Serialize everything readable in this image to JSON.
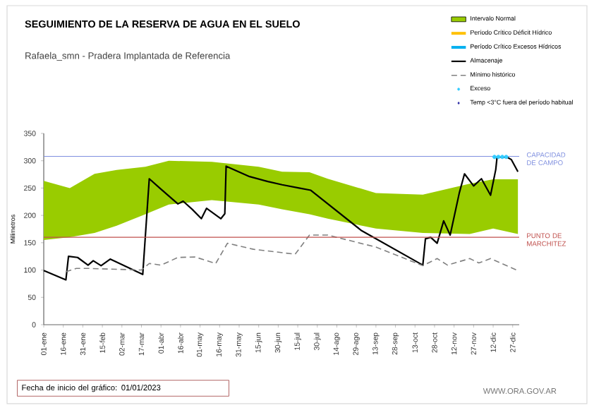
{
  "chart_data": {
    "type": "line",
    "title": "SEGUIMIENTO DE LA RESERVA DE AGUA EN EL SUELO",
    "subtitle": "Rafaela_smn - Pradera Implantada  de Referencia",
    "ylabel": "Milímetros",
    "xlim": [
      "2023-01-01",
      "2024-01-01"
    ],
    "ylim": [
      0,
      350
    ],
    "yticks": [
      0,
      50,
      100,
      150,
      200,
      250,
      300,
      350
    ],
    "xticks": [
      {
        "value": "2023-01-01",
        "label": "01-ene"
      },
      {
        "value": "2023-01-16",
        "label": "16-ene"
      },
      {
        "value": "2023-01-31",
        "label": "31-ene"
      },
      {
        "value": "2023-02-15",
        "label": "15-feb"
      },
      {
        "value": "2023-03-02",
        "label": "02-mar"
      },
      {
        "value": "2023-03-17",
        "label": "17-mar"
      },
      {
        "value": "2023-04-01",
        "label": "01-abr"
      },
      {
        "value": "2023-04-16",
        "label": "16-abr"
      },
      {
        "value": "2023-05-01",
        "label": "01-may"
      },
      {
        "value": "2023-05-16",
        "label": "16-may"
      },
      {
        "value": "2023-05-31",
        "label": "31-may"
      },
      {
        "value": "2023-06-15",
        "label": "15-jun"
      },
      {
        "value": "2023-06-30",
        "label": "30-jun"
      },
      {
        "value": "2023-07-15",
        "label": "15-jul"
      },
      {
        "value": "2023-07-30",
        "label": "30-jul"
      },
      {
        "value": "2023-08-14",
        "label": "14-ago"
      },
      {
        "value": "2023-08-29",
        "label": "29-ago"
      },
      {
        "value": "2023-09-13",
        "label": "13-sep"
      },
      {
        "value": "2023-09-28",
        "label": "28-sep"
      },
      {
        "value": "2023-10-13",
        "label": "13-oct"
      },
      {
        "value": "2023-10-28",
        "label": "28-oct"
      },
      {
        "value": "2023-11-12",
        "label": "12-nov"
      },
      {
        "value": "2023-11-27",
        "label": "27-nov"
      },
      {
        "value": "2023-12-12",
        "label": "12-dic"
      },
      {
        "value": "2023-12-27",
        "label": "27-dic"
      }
    ],
    "legend": "top right",
    "series": [
      {
        "name": "Intervalo Normal",
        "type": "area",
        "color": "#99cc00",
        "x": [
          "2023-01-01",
          "2023-01-21",
          "2023-02-09",
          "2023-02-26",
          "2023-03-20",
          "2023-04-07",
          "2023-05-10",
          "2023-06-15",
          "2023-07-03",
          "2023-07-24",
          "2023-08-07",
          "2023-09-13",
          "2023-10-19",
          "2023-11-24",
          "2023-12-12",
          "2023-12-31"
        ],
        "values": [
          null,
          null,
          null,
          null,
          null,
          null,
          null,
          null,
          null,
          null,
          null,
          null,
          null,
          null,
          null,
          null
        ],
        "lower": [
          155,
          160,
          168,
          181,
          202,
          220,
          228,
          220,
          211,
          202,
          194,
          176,
          168,
          166,
          176,
          166
        ],
        "upper": [
          263,
          250,
          276,
          283,
          289,
          300,
          298,
          289,
          280,
          279,
          267,
          241,
          238,
          258,
          266,
          266
        ]
      },
      {
        "name": "Período Crítico Déficit Hídrico",
        "color": "#ffc000"
      },
      {
        "name": "Período Crítico Excesos Hídricos",
        "color": "#00b0f0"
      },
      {
        "name": "Almacenaje",
        "color": "#000000",
        "x": [
          "2023-01-01",
          "2023-01-18",
          "2023-01-20",
          "2023-01-27",
          "2023-02-04",
          "2023-02-08",
          "2023-02-14",
          "2023-02-21",
          "2023-03-18",
          "2023-03-23",
          "2023-03-31",
          "2023-04-14",
          "2023-04-18",
          "2023-04-25",
          "2023-05-02",
          "2023-05-06",
          "2023-05-17",
          "2023-05-20",
          "2023-05-21",
          "2023-06-08",
          "2023-06-22",
          "2023-07-03",
          "2023-07-16",
          "2023-07-25",
          "2023-09-02",
          "2023-10-19",
          "2023-10-21",
          "2023-10-25",
          "2023-10-30",
          "2023-11-04",
          "2023-11-09",
          "2023-11-16",
          "2023-11-20",
          "2023-11-27",
          "2023-12-03",
          "2023-12-10",
          "2023-12-14",
          "2023-12-15",
          "2023-12-23",
          "2023-12-26",
          "2023-12-31"
        ],
        "values": [
          99,
          82,
          125,
          123,
          109,
          117,
          108,
          120,
          92,
          267,
          250,
          221,
          226,
          211,
          194,
          213,
          194,
          203,
          290,
          271,
          262,
          256,
          250,
          246,
          172,
          109,
          157,
          160,
          149,
          190,
          164,
          241,
          276,
          254,
          267,
          237,
          284,
          307,
          306,
          302,
          280
        ]
      },
      {
        "name": "Mínimo histórico",
        "color": "#808080",
        "line_style": "dashed",
        "x": [
          "2023-01-18",
          "2023-01-26",
          "2023-02-04",
          "2023-03-17",
          "2023-03-23",
          "2023-04-01",
          "2023-04-14",
          "2023-04-27",
          "2023-05-13",
          "2023-05-22",
          "2023-06-11",
          "2023-07-13",
          "2023-07-24",
          "2023-08-07",
          "2023-09-13",
          "2023-10-19",
          "2023-10-30",
          "2023-11-07",
          "2023-11-24",
          "2023-12-01",
          "2023-12-10",
          "2023-12-31"
        ],
        "values": [
          97,
          103,
          103,
          100,
          112,
          109,
          123,
          124,
          112,
          149,
          138,
          129,
          164,
          164,
          142,
          108,
          121,
          109,
          121,
          113,
          121,
          99
        ]
      },
      {
        "name": "Exceso",
        "type": "scatter",
        "marker": "circle",
        "color": "#33ccff",
        "x": [
          "2023-12-13",
          "2023-12-16",
          "2023-12-19",
          "2023-12-22"
        ],
        "values": [
          307,
          307,
          307,
          307
        ]
      },
      {
        "name": "Temp <3°C fuera del período habitual",
        "type": "scatter",
        "marker": "diamond",
        "color": "#1f1fa0"
      }
    ],
    "ref_lines": [
      {
        "axis": "y",
        "value": 308,
        "label": "CAPACIDAD DE CAMPO",
        "color": "#7f8fdf"
      },
      {
        "axis": "y",
        "value": 160,
        "label": "PUNTO DE MARCHITEZ",
        "color": "#c0504d"
      }
    ],
    "annotations": [
      "Fecha de inicio del gráfico:  01/01/2023",
      "WWW.ORA.GOV.AR"
    ]
  }
}
